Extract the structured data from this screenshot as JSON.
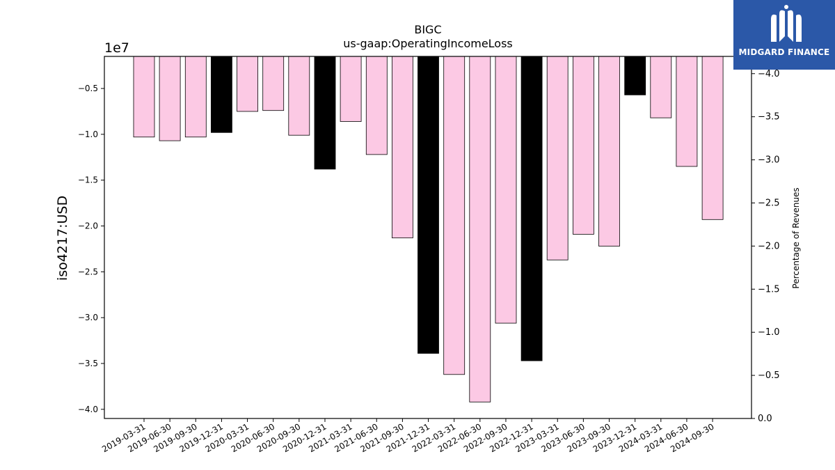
{
  "chart_data": {
    "type": "bar",
    "title": "BIGC",
    "subtitle": "us-gaap:OperatingIncomeLoss",
    "ylabel": "iso4217:USD",
    "y2label": "Percentage of Revenues",
    "offset_label": "1e7",
    "ylim": [
      -41000000,
      -1500000
    ],
    "y2lim": [
      0.0,
      4.2
    ],
    "yticks": [
      -4.0,
      -3.5,
      -3.0,
      -2.5,
      -2.0,
      -1.5,
      -1.0,
      -0.5
    ],
    "y2ticks": [
      0.0,
      0.5,
      1.0,
      1.5,
      2.0,
      2.5,
      3.0,
      3.5,
      4.0
    ],
    "categories": [
      "2019-03-31",
      "2019-06-30",
      "2019-09-30",
      "2019-12-31",
      "2020-03-31",
      "2020-06-30",
      "2020-09-30",
      "2020-12-31",
      "2021-03-31",
      "2021-06-30",
      "2021-09-30",
      "2021-12-31",
      "2022-03-31",
      "2022-06-30",
      "2022-09-30",
      "2022-12-31",
      "2023-03-31",
      "2023-06-30",
      "2023-09-30",
      "2023-12-31",
      "2024-03-31",
      "2024-06-30",
      "2024-09-30"
    ],
    "values": [
      -10300000,
      -10700000,
      -10300000,
      -9800000,
      -7500000,
      -7400000,
      -10100000,
      -13800000,
      -8600000,
      -12200000,
      -21300000,
      -33900000,
      -36200000,
      -39200000,
      -30600000,
      -34700000,
      -23700000,
      -20900000,
      -22200000,
      -5700000,
      -8200000,
      -13500000,
      -19300000
    ],
    "highlight_categories": [
      "2019-12-31",
      "2020-12-31",
      "2021-12-31",
      "2022-12-31",
      "2023-12-31"
    ],
    "colors": {
      "bar": "#fcc9e4",
      "highlight": "#000000",
      "edge": "#000000"
    },
    "grid": false,
    "legend": "none"
  },
  "logo": {
    "text": "MIDGARD FINANCE",
    "icon": "midgard-m-logo-icon",
    "background": "#2b58a8"
  }
}
